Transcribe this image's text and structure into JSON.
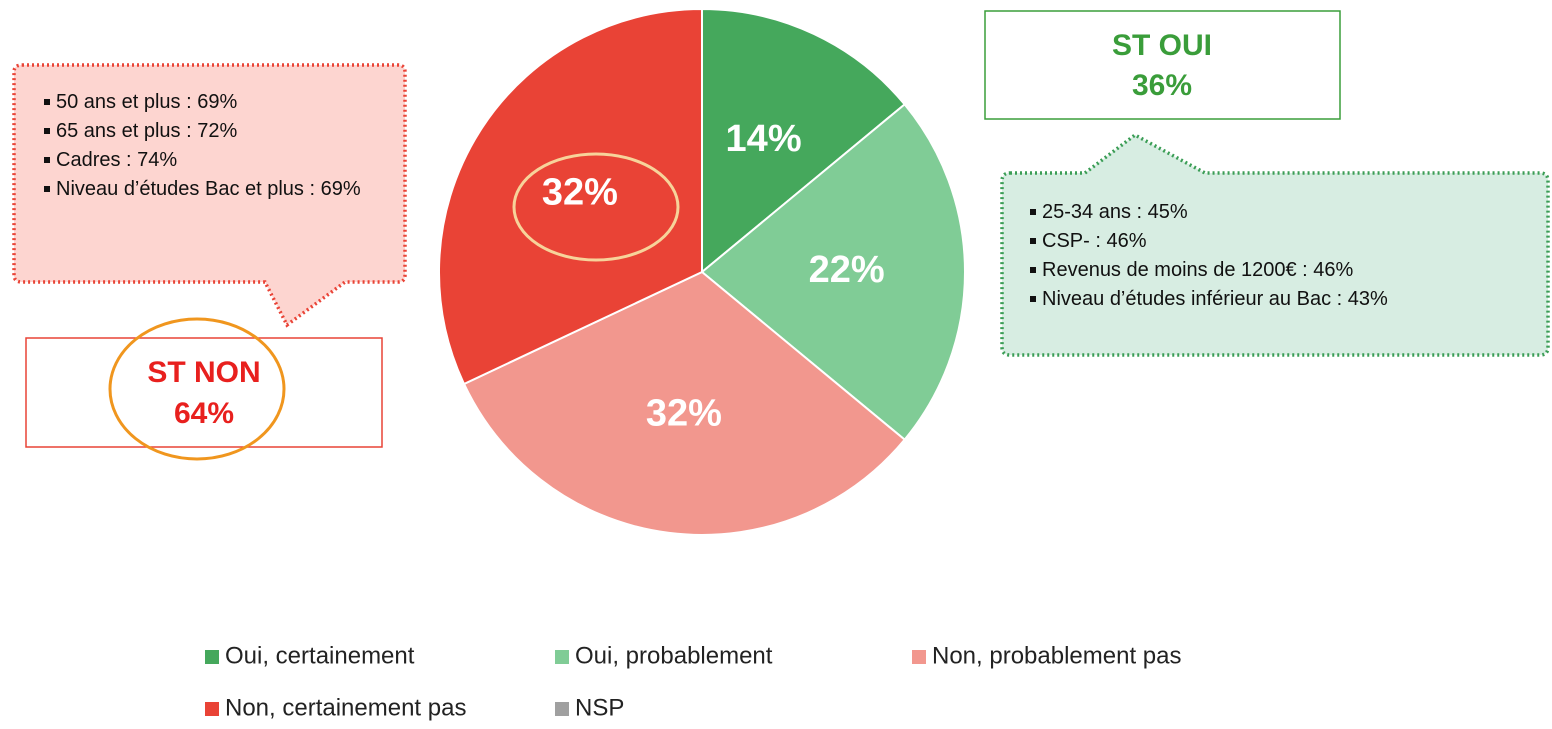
{
  "chart_data": {
    "type": "pie",
    "categories": [
      "Oui, certainement",
      "Oui, probablement",
      "Non, probablement pas",
      "Non, certainement pas",
      "NSP"
    ],
    "values": [
      14,
      22,
      32,
      32,
      0
    ],
    "value_labels": [
      "14%",
      "22%",
      "32%",
      "32%",
      null
    ],
    "colors": [
      "#45a85c",
      "#80cc96",
      "#f2978e",
      "#e94336",
      "#a0a0a0"
    ],
    "legend": "bottom",
    "annotations": [
      {
        "title": "ST OUI",
        "value": "36%"
      },
      {
        "title": "ST NON",
        "value": "64%"
      }
    ],
    "notes": [
      [
        "50 ans et plus : 69%",
        "65 ans et plus : 72%",
        "Cadres : 74%",
        "Niveau d’études Bac et plus : 69%"
      ],
      [
        "25-34 ans : 45%",
        "CSP- : 46%",
        "Revenus de moins de 1200€ : 46%",
        "Niveau d’études inférieur au Bac : 43%"
      ]
    ]
  }
}
